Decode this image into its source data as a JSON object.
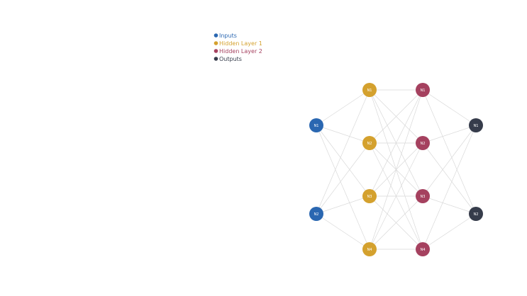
{
  "layers": [
    {
      "name": "Inputs",
      "color": "#2a67b1",
      "nodes": [
        "N1",
        "N2"
      ]
    },
    {
      "name": "Hidden Layer 1",
      "color": "#d4a12e",
      "nodes": [
        "N1",
        "N2",
        "N3",
        "N4"
      ]
    },
    {
      "name": "Hidden Layer 2",
      "color": "#a5415f",
      "nodes": [
        "N1",
        "N2",
        "N3",
        "N4"
      ]
    },
    {
      "name": "Outputs",
      "color": "#363c4b",
      "nodes": [
        "N1",
        "N2"
      ]
    }
  ]
}
